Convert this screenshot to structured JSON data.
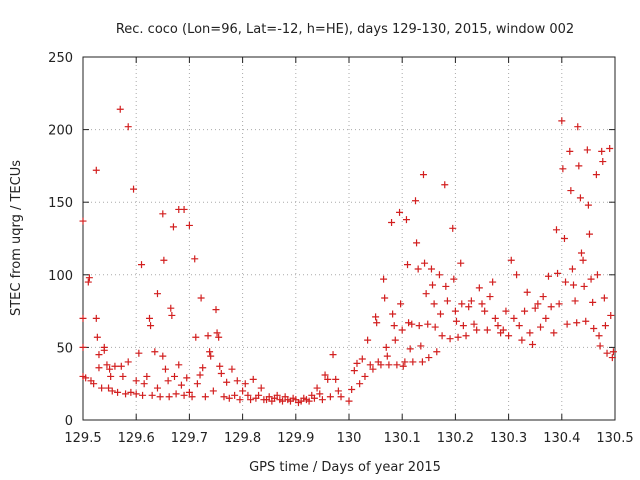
{
  "chart_data": {
    "type": "scatter",
    "title": "Rec. coco (Lon=96, Lat=-12, h=HE), days 129-130, 2015, window 002",
    "xlabel": "GPS time / Days of year 2015",
    "ylabel": "STEC from uqrg / TECUs",
    "xlim": [
      129.5,
      130.5
    ],
    "ylim": [
      0,
      250
    ],
    "x_ticks": [
      129.5,
      129.6,
      129.7,
      129.8,
      129.9,
      130.0,
      130.1,
      130.2,
      130.3,
      130.4,
      130.5
    ],
    "x_tick_labels": [
      "129.5",
      "129.6",
      "129.7",
      "129.8",
      "129.9",
      "130",
      "130.1",
      "130.2",
      "130.3",
      "130.4",
      "130.5"
    ],
    "y_ticks": [
      0,
      50,
      100,
      150,
      200,
      250
    ],
    "y_tick_labels": [
      "0",
      "50",
      "100",
      "150",
      "200",
      "250"
    ],
    "grid": true,
    "marker": "+",
    "color": "#d21f1f",
    "series": [
      {
        "name": "STEC",
        "points": [
          [
            129.5,
            137
          ],
          [
            129.5,
            70
          ],
          [
            129.5,
            50
          ],
          [
            129.5,
            30
          ],
          [
            129.505,
            29
          ],
          [
            129.51,
            95
          ],
          [
            129.512,
            98
          ],
          [
            129.515,
            27
          ],
          [
            129.52,
            25
          ],
          [
            129.525,
            172
          ],
          [
            129.525,
            70
          ],
          [
            129.527,
            57
          ],
          [
            129.53,
            45
          ],
          [
            129.53,
            36
          ],
          [
            129.535,
            22
          ],
          [
            129.54,
            50
          ],
          [
            129.54,
            48
          ],
          [
            129.545,
            38
          ],
          [
            129.548,
            22
          ],
          [
            129.55,
            35
          ],
          [
            129.552,
            30
          ],
          [
            129.555,
            20
          ],
          [
            129.56,
            37
          ],
          [
            129.565,
            19
          ],
          [
            129.57,
            214
          ],
          [
            129.572,
            37
          ],
          [
            129.575,
            30
          ],
          [
            129.58,
            18
          ],
          [
            129.585,
            202
          ],
          [
            129.585,
            40
          ],
          [
            129.59,
            19
          ],
          [
            129.595,
            159
          ],
          [
            129.6,
            18
          ],
          [
            129.6,
            27
          ],
          [
            129.605,
            46
          ],
          [
            129.61,
            107
          ],
          [
            129.612,
            17
          ],
          [
            129.615,
            25
          ],
          [
            129.62,
            30
          ],
          [
            129.625,
            70
          ],
          [
            129.627,
            65
          ],
          [
            129.63,
            17
          ],
          [
            129.635,
            47
          ],
          [
            129.64,
            87
          ],
          [
            129.64,
            22
          ],
          [
            129.645,
            16
          ],
          [
            129.65,
            142
          ],
          [
            129.65,
            44
          ],
          [
            129.652,
            110
          ],
          [
            129.655,
            35
          ],
          [
            129.66,
            27
          ],
          [
            129.662,
            16
          ],
          [
            129.665,
            77
          ],
          [
            129.667,
            72
          ],
          [
            129.67,
            133
          ],
          [
            129.672,
            30
          ],
          [
            129.675,
            18
          ],
          [
            129.68,
            145
          ],
          [
            129.68,
            38
          ],
          [
            129.685,
            24
          ],
          [
            129.69,
            145
          ],
          [
            129.69,
            17
          ],
          [
            129.695,
            29
          ],
          [
            129.7,
            134
          ],
          [
            129.7,
            19
          ],
          [
            129.705,
            16
          ],
          [
            129.71,
            111
          ],
          [
            129.712,
            57
          ],
          [
            129.715,
            25
          ],
          [
            129.72,
            31
          ],
          [
            129.722,
            84
          ],
          [
            129.725,
            36
          ],
          [
            129.73,
            16
          ],
          [
            129.735,
            58
          ],
          [
            129.738,
            47
          ],
          [
            129.74,
            44
          ],
          [
            129.745,
            20
          ],
          [
            129.75,
            76
          ],
          [
            129.752,
            60
          ],
          [
            129.755,
            57
          ],
          [
            129.757,
            37
          ],
          [
            129.76,
            32
          ],
          [
            129.765,
            16
          ],
          [
            129.77,
            26
          ],
          [
            129.775,
            15
          ],
          [
            129.78,
            35
          ],
          [
            129.785,
            17
          ],
          [
            129.79,
            27
          ],
          [
            129.795,
            14
          ],
          [
            129.8,
            20
          ],
          [
            129.805,
            25
          ],
          [
            129.81,
            17
          ],
          [
            129.815,
            14
          ],
          [
            129.82,
            28
          ],
          [
            129.825,
            15
          ],
          [
            129.83,
            17
          ],
          [
            129.835,
            22
          ],
          [
            129.84,
            14
          ],
          [
            129.845,
            14
          ],
          [
            129.85,
            16
          ],
          [
            129.855,
            13
          ],
          [
            129.86,
            15
          ],
          [
            129.865,
            17
          ],
          [
            129.87,
            14
          ],
          [
            129.875,
            13
          ],
          [
            129.88,
            16
          ],
          [
            129.885,
            14
          ],
          [
            129.89,
            13
          ],
          [
            129.895,
            15
          ],
          [
            129.9,
            14
          ],
          [
            129.905,
            12
          ],
          [
            129.91,
            13
          ],
          [
            129.915,
            15
          ],
          [
            129.92,
            14
          ],
          [
            129.925,
            13
          ],
          [
            129.93,
            17
          ],
          [
            129.935,
            15
          ],
          [
            129.94,
            22
          ],
          [
            129.945,
            18
          ],
          [
            129.95,
            14
          ],
          [
            129.955,
            31
          ],
          [
            129.96,
            28
          ],
          [
            129.965,
            16
          ],
          [
            129.97,
            45
          ],
          [
            129.975,
            28
          ],
          [
            129.98,
            20
          ],
          [
            129.985,
            16
          ],
          [
            130.0,
            13
          ],
          [
            130.005,
            21
          ],
          [
            130.01,
            34
          ],
          [
            130.015,
            39
          ],
          [
            130.02,
            25
          ],
          [
            130.025,
            42
          ],
          [
            130.03,
            30
          ],
          [
            130.035,
            55
          ],
          [
            130.04,
            38
          ],
          [
            130.045,
            35
          ],
          [
            130.05,
            71
          ],
          [
            130.052,
            67
          ],
          [
            130.055,
            40
          ],
          [
            130.06,
            38
          ],
          [
            130.065,
            97
          ],
          [
            130.067,
            84
          ],
          [
            130.07,
            50
          ],
          [
            130.072,
            44
          ],
          [
            130.075,
            38
          ],
          [
            130.08,
            136
          ],
          [
            130.082,
            73
          ],
          [
            130.085,
            65
          ],
          [
            130.087,
            55
          ],
          [
            130.09,
            38
          ],
          [
            130.095,
            143
          ],
          [
            130.097,
            80
          ],
          [
            130.1,
            62
          ],
          [
            130.102,
            37
          ],
          [
            130.105,
            40
          ],
          [
            130.108,
            138
          ],
          [
            130.11,
            107
          ],
          [
            130.112,
            67
          ],
          [
            130.115,
            49
          ],
          [
            130.118,
            66
          ],
          [
            130.12,
            40
          ],
          [
            130.125,
            151
          ],
          [
            130.127,
            122
          ],
          [
            130.13,
            104
          ],
          [
            130.132,
            65
          ],
          [
            130.135,
            51
          ],
          [
            130.138,
            40
          ],
          [
            130.14,
            169
          ],
          [
            130.142,
            108
          ],
          [
            130.145,
            87
          ],
          [
            130.148,
            66
          ],
          [
            130.15,
            43
          ],
          [
            130.155,
            104
          ],
          [
            130.157,
            93
          ],
          [
            130.16,
            80
          ],
          [
            130.162,
            64
          ],
          [
            130.165,
            47
          ],
          [
            130.17,
            100
          ],
          [
            130.172,
            73
          ],
          [
            130.175,
            58
          ],
          [
            130.18,
            162
          ],
          [
            130.182,
            92
          ],
          [
            130.185,
            82
          ],
          [
            130.19,
            56
          ],
          [
            130.195,
            132
          ],
          [
            130.197,
            97
          ],
          [
            130.2,
            75
          ],
          [
            130.202,
            68
          ],
          [
            130.205,
            57
          ],
          [
            130.21,
            108
          ],
          [
            130.212,
            80
          ],
          [
            130.215,
            65
          ],
          [
            130.22,
            58
          ],
          [
            130.225,
            78
          ],
          [
            130.23,
            82
          ],
          [
            130.235,
            66
          ],
          [
            130.24,
            62
          ],
          [
            130.245,
            91
          ],
          [
            130.25,
            80
          ],
          [
            130.255,
            75
          ],
          [
            130.26,
            62
          ],
          [
            130.265,
            85
          ],
          [
            130.27,
            95
          ],
          [
            130.275,
            70
          ],
          [
            130.28,
            65
          ],
          [
            130.285,
            60
          ],
          [
            130.29,
            62
          ],
          [
            130.295,
            75
          ],
          [
            130.3,
            58
          ],
          [
            130.305,
            110
          ],
          [
            130.31,
            70
          ],
          [
            130.315,
            100
          ],
          [
            130.32,
            65
          ],
          [
            130.325,
            55
          ],
          [
            130.33,
            75
          ],
          [
            130.335,
            88
          ],
          [
            130.34,
            60
          ],
          [
            130.345,
            52
          ],
          [
            130.35,
            77
          ],
          [
            130.355,
            80
          ],
          [
            130.36,
            64
          ],
          [
            130.365,
            85
          ],
          [
            130.37,
            70
          ],
          [
            130.375,
            99
          ],
          [
            130.38,
            78
          ],
          [
            130.385,
            60
          ],
          [
            130.39,
            131
          ],
          [
            130.392,
            101
          ],
          [
            130.395,
            80
          ],
          [
            130.4,
            206
          ],
          [
            130.402,
            173
          ],
          [
            130.405,
            125
          ],
          [
            130.407,
            95
          ],
          [
            130.41,
            66
          ],
          [
            130.415,
            185
          ],
          [
            130.417,
            158
          ],
          [
            130.42,
            104
          ],
          [
            130.422,
            93
          ],
          [
            130.425,
            82
          ],
          [
            130.428,
            67
          ],
          [
            130.43,
            202
          ],
          [
            130.432,
            175
          ],
          [
            130.435,
            153
          ],
          [
            130.437,
            115
          ],
          [
            130.44,
            110
          ],
          [
            130.442,
            92
          ],
          [
            130.445,
            68
          ],
          [
            130.448,
            186
          ],
          [
            130.45,
            148
          ],
          [
            130.452,
            128
          ],
          [
            130.455,
            97
          ],
          [
            130.458,
            81
          ],
          [
            130.46,
            63
          ],
          [
            130.465,
            169
          ],
          [
            130.467,
            100
          ],
          [
            130.47,
            58
          ],
          [
            130.472,
            51
          ],
          [
            130.475,
            185
          ],
          [
            130.477,
            178
          ],
          [
            130.48,
            84
          ],
          [
            130.482,
            65
          ],
          [
            130.485,
            46
          ],
          [
            130.49,
            187
          ],
          [
            130.492,
            72
          ],
          [
            130.495,
            43
          ],
          [
            130.497,
            47
          ]
        ]
      }
    ]
  }
}
